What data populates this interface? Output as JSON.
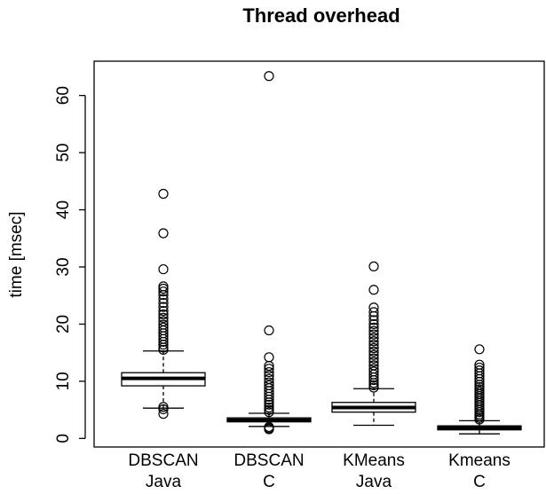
{
  "chart_data": {
    "type": "boxplot",
    "title": "Thread overhead",
    "xlabel": "",
    "ylabel": "time [msec]",
    "ylim": [
      -1.5,
      66
    ],
    "yticks": [
      0,
      10,
      20,
      30,
      40,
      50,
      60
    ],
    "grid": false,
    "categories": [
      [
        "DBSCAN",
        "Java"
      ],
      [
        "DBSCAN",
        "C"
      ],
      [
        "KMeans",
        "Java"
      ],
      [
        "Kmeans",
        "C"
      ]
    ],
    "boxes": [
      {
        "whisker_low": 5.3,
        "q1": 9.2,
        "median": 10.5,
        "q3": 11.5,
        "whisker_high": 15.3,
        "outliers": [
          4.3,
          5.1,
          5.5,
          15.5,
          15.9,
          16.4,
          16.9,
          17.4,
          17.9,
          18.4,
          18.9,
          19.4,
          19.9,
          20.5,
          21.1,
          21.7,
          22.3,
          23.0,
          23.7,
          24.4,
          25.1,
          25.7,
          26.2,
          26.6,
          29.6,
          35.9,
          42.8
        ]
      },
      {
        "whisker_low": 2.1,
        "q1": 2.9,
        "median": 3.2,
        "q3": 3.6,
        "whisker_high": 4.4,
        "outliers": [
          1.6,
          1.8,
          2.0,
          4.6,
          5.0,
          5.4,
          5.9,
          6.3,
          6.8,
          7.3,
          7.8,
          8.3,
          8.8,
          9.3,
          9.8,
          10.4,
          11.0,
          11.6,
          12.2,
          12.7,
          14.2,
          18.9,
          63.4
        ]
      },
      {
        "whisker_low": 2.3,
        "q1": 4.6,
        "median": 5.4,
        "q3": 6.3,
        "whisker_high": 8.7,
        "outliers": [
          8.9,
          9.3,
          9.7,
          10.2,
          10.7,
          11.2,
          11.7,
          12.2,
          12.8,
          13.4,
          14.0,
          14.6,
          15.2,
          15.8,
          16.4,
          17.0,
          17.6,
          18.2,
          18.8,
          19.4,
          20.0,
          20.7,
          21.4,
          22.1,
          22.9,
          26.0,
          30.1
        ]
      },
      {
        "whisker_low": 0.8,
        "q1": 1.5,
        "median": 1.9,
        "q3": 2.2,
        "whisker_high": 3.1,
        "outliers": [
          3.3,
          3.6,
          3.9,
          4.2,
          4.6,
          5.0,
          5.4,
          5.8,
          6.2,
          6.6,
          7.0,
          7.4,
          7.8,
          8.2,
          8.6,
          9.0,
          9.4,
          9.9,
          10.4,
          10.9,
          11.4,
          11.9,
          12.4,
          12.9,
          15.6
        ]
      }
    ]
  }
}
